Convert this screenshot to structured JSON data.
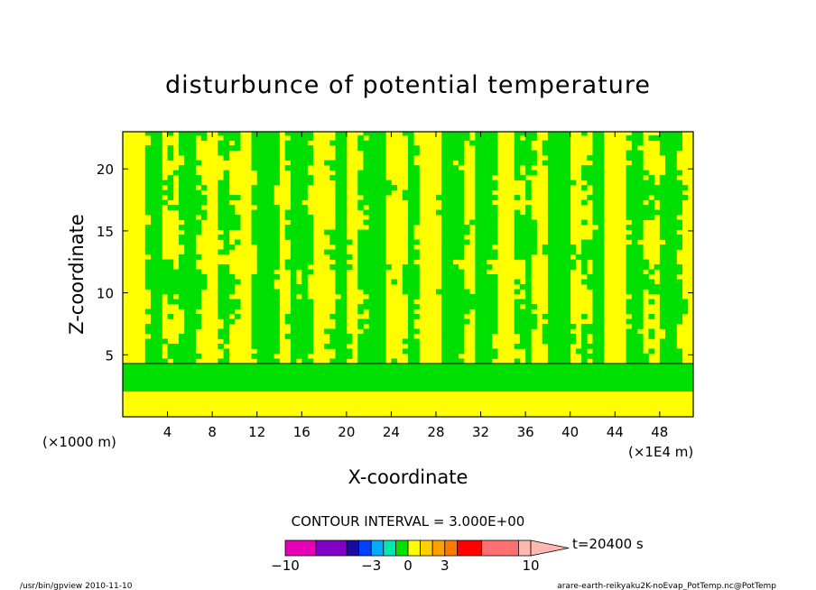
{
  "chart_data": {
    "type": "heatmap",
    "title": "disturbunce of potential temperature",
    "xlabel": "X-coordinate",
    "ylabel": "Z-coordinate",
    "x_unit_label": "(×1E4 m)",
    "y_unit_label": "(×1000 m)",
    "xlim": [
      0,
      51
    ],
    "ylim": [
      0,
      23
    ],
    "x_ticks": [
      4,
      8,
      12,
      16,
      20,
      24,
      28,
      32,
      36,
      40,
      44,
      48
    ],
    "y_ticks": [
      5,
      10,
      15,
      20
    ],
    "contour_interval_label": "CONTOUR INTERVAL = 3.000E+00",
    "time_label": "t=20400 s",
    "colorbar": {
      "tick_labels": [
        {
          "value": -10,
          "label": "−10"
        },
        {
          "value": -3,
          "label": "−3"
        },
        {
          "value": 0,
          "label": "0"
        },
        {
          "value": 3,
          "label": "3"
        },
        {
          "value": 10,
          "label": "10"
        }
      ],
      "segments": [
        {
          "from": -10,
          "to": -7.5,
          "color": "#e600b8"
        },
        {
          "from": -7.5,
          "to": -5,
          "color": "#8000c8"
        },
        {
          "from": -5,
          "to": -4,
          "color": "#1a0aa0"
        },
        {
          "from": -4,
          "to": -3,
          "color": "#0040ff"
        },
        {
          "from": -3,
          "to": -2,
          "color": "#00aaff"
        },
        {
          "from": -2,
          "to": -1,
          "color": "#00e8b0"
        },
        {
          "from": -1,
          "to": 0,
          "color": "#00e000"
        },
        {
          "from": 0,
          "to": 1,
          "color": "#ffff00"
        },
        {
          "from": 1,
          "to": 2,
          "color": "#ffd000"
        },
        {
          "from": 2,
          "to": 3,
          "color": "#ffa000"
        },
        {
          "from": 3,
          "to": 4,
          "color": "#ff7a00"
        },
        {
          "from": 4,
          "to": 6,
          "color": "#ff0000"
        },
        {
          "from": 6,
          "to": 9,
          "color": "#ff7070"
        },
        {
          "from": 9,
          "to": 10,
          "color": "#ffb8b0"
        }
      ]
    },
    "field_colors": {
      "positive": "#ffff00",
      "negative": "#00e000"
    },
    "layers": [
      {
        "zmin": 0,
        "zmax": 2.1,
        "value": "positive"
      },
      {
        "zmin": 2.1,
        "zmax": 4.3,
        "value": "negative"
      }
    ]
  },
  "footer": {
    "left": "/usr/bin/gpview  2010-11-10",
    "right": "arare-earth-reikyaku2K-noEvap_PotTemp.nc@PotTemp"
  }
}
